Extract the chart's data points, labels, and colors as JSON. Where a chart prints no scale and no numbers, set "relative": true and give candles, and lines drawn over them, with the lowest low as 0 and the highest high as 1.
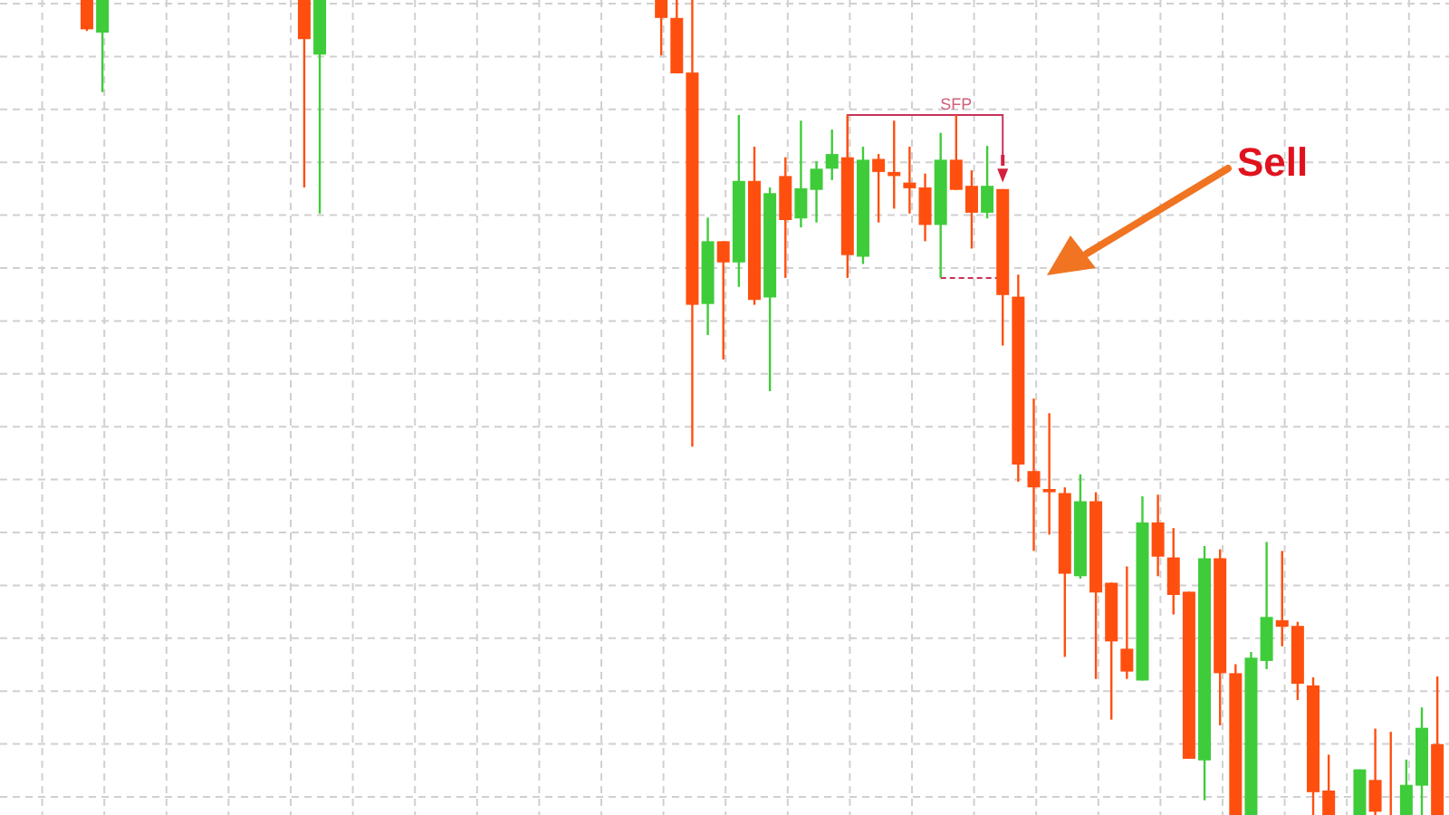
{
  "chart_data": {
    "type": "candlestick",
    "relative": true,
    "grid": true,
    "colors": [
      "#ff4f0f",
      "#3fcc3a",
      null,
      null,
      null,
      null,
      null,
      null,
      null,
      null,
      null,
      null,
      null,
      null,
      "#ff4f0f",
      "#3fcc3a",
      null,
      null,
      null,
      null,
      null,
      null,
      null,
      null,
      null,
      null,
      null,
      null,
      null,
      null,
      null,
      null,
      null,
      null,
      null,
      null,
      null,
      "#ff4f0f",
      "#ff4f0f",
      "#ff4f0f",
      "#3fcc3a",
      "#ff4f0f",
      "#3fcc3a",
      "#ff4f0f",
      "#3fcc3a",
      "#ff4f0f",
      "#3fcc3a",
      "#3fcc3a",
      "#3fcc3a",
      "#ff4f0f",
      "#3fcc3a",
      "#ff4f0f",
      "#ff4f0f",
      "#ff4f0f",
      "#ff4f0f",
      "#3fcc3a",
      "#ff4f0f",
      "#ff4f0f",
      "#3fcc3a",
      "#ff4f0f",
      "#ff4f0f",
      "#ff4f0f",
      "#ff4f0f",
      "#ff4f0f",
      "#3fcc3a",
      "#ff4f0f",
      "#ff4f0f",
      "#ff4f0f",
      "#3fcc3a",
      "#ff4f0f",
      "#ff4f0f",
      "#ff4f0f",
      "#3fcc3a",
      "#ff4f0f",
      "#ff4f0f",
      "#3fcc3a",
      "#3fcc3a",
      "#ff4f0f",
      "#ff4f0f",
      "#ff4f0f",
      "#ff4f0f",
      null,
      "#3fcc3a",
      "#ff4f0f",
      "#ff4f0f",
      "#3fcc3a",
      "#3fcc3a",
      "#ff4f0f"
    ],
    "annotations": [
      "SFP",
      "Sell"
    ],
    "categories": [
      null,
      null,
      null,
      null,
      null,
      null,
      null,
      null,
      null,
      null,
      null,
      null,
      null,
      null,
      null,
      null,
      null,
      null,
      null,
      null,
      null,
      null,
      null,
      null,
      null,
      null,
      null,
      null,
      null,
      null,
      null,
      null,
      null,
      null,
      null,
      null,
      null,
      null,
      null,
      null,
      null,
      null,
      null,
      null,
      null,
      null,
      null,
      null,
      null,
      null,
      null,
      null,
      null,
      null,
      null,
      null,
      null,
      null,
      null,
      null,
      null,
      null,
      null,
      null,
      null,
      null,
      null,
      null,
      null,
      null,
      null,
      null,
      null,
      null,
      null,
      null,
      null,
      null,
      null,
      null,
      null,
      null,
      null,
      null,
      null,
      null,
      null,
      null
    ],
    "ohlc": [
      [
        1,
        1,
        0.962,
        0.964
      ],
      [
        0.96,
        1,
        0.887,
        1
      ],
      null,
      null,
      null,
      null,
      null,
      null,
      null,
      null,
      null,
      null,
      null,
      null,
      [
        1,
        1,
        0.77,
        0.952
      ],
      [
        0.933,
        1,
        0.738,
        1
      ],
      null,
      null,
      null,
      null,
      null,
      null,
      null,
      null,
      null,
      null,
      null,
      null,
      null,
      null,
      null,
      null,
      null,
      null,
      null,
      null,
      null,
      [
        1,
        1,
        0.932,
        0.978
      ],
      [
        0.978,
        1,
        0.91,
        0.91
      ],
      [
        0.911,
        1,
        0.452,
        0.626
      ],
      [
        0.627,
        0.733,
        0.589,
        0.704
      ],
      [
        0.704,
        0.704,
        0.559,
        0.678
      ],
      [
        0.678,
        0.859,
        0.648,
        0.778
      ],
      [
        0.778,
        0.82,
        0.626,
        0.632
      ],
      [
        0.635,
        0.77,
        0.52,
        0.763
      ],
      [
        0.784,
        0.807,
        0.659,
        0.73
      ],
      [
        0.732,
        0.852,
        0.721,
        0.769
      ],
      [
        0.767,
        0.802,
        0.727,
        0.793
      ],
      [
        0.793,
        0.841,
        0.779,
        0.811
      ],
      [
        0.807,
        0.859,
        0.659,
        0.687
      ],
      [
        0.685,
        0.82,
        0.676,
        0.804
      ],
      [
        0.805,
        0.811,
        0.727,
        0.789
      ],
      [
        0.789,
        0.852,
        0.744,
        0.784
      ],
      [
        0.776,
        0.82,
        0.738,
        0.769
      ],
      [
        0.77,
        0.787,
        0.704,
        0.724
      ],
      [
        0.724,
        0.837,
        0.659,
        0.804
      ],
      [
        0.804,
        0.859,
        0.767,
        0.767
      ],
      [
        0.772,
        0.791,
        0.695,
        0.739
      ],
      [
        0.739,
        0.821,
        0.732,
        0.772
      ],
      [
        0.768,
        0.768,
        0.576,
        0.638
      ],
      [
        0.636,
        0.663,
        0.409,
        0.43
      ],
      [
        0.422,
        0.511,
        0.324,
        0.402
      ],
      [
        0.4,
        0.493,
        0.344,
        0.396
      ],
      [
        0.395,
        0.402,
        0.194,
        0.296
      ],
      [
        0.293,
        0.418,
        0.29,
        0.385
      ],
      [
        0.385,
        0.396,
        0.167,
        0.273
      ],
      [
        0.285,
        0.285,
        0.117,
        0.213
      ],
      [
        0.204,
        0.305,
        0.167,
        0.176
      ],
      [
        0.165,
        0.391,
        0.165,
        0.359
      ],
      [
        0.359,
        0.393,
        0.293,
        0.317
      ],
      [
        0.316,
        0.352,
        0.246,
        0.27
      ],
      [
        0.274,
        0.274,
        0.069,
        0.069
      ],
      [
        0.067,
        0.33,
        0.018,
        0.315
      ],
      [
        0.315,
        0.326,
        0.11,
        0.174
      ],
      [
        0.174,
        0.185,
        0,
        0
      ],
      [
        0,
        0.2,
        0,
        0.193
      ],
      [
        0.189,
        0.335,
        0.179,
        0.243
      ],
      [
        0.239,
        0.324,
        0.207,
        0.231
      ],
      [
        0.232,
        0.237,
        0.141,
        0.161
      ],
      [
        0.159,
        0.169,
        0,
        0.028
      ],
      [
        0.03,
        0.074,
        0,
        0
      ],
      null,
      [
        0,
        0.056,
        0,
        0.056
      ],
      [
        0.043,
        0.106,
        0,
        0.004
      ],
      [
        0,
        0.102,
        0,
        0
      ],
      [
        0,
        0.068,
        0,
        0.037
      ],
      [
        0.036,
        0.132,
        0,
        0.107
      ],
      [
        0.087,
        0.17,
        0,
        0
      ]
    ]
  }
}
